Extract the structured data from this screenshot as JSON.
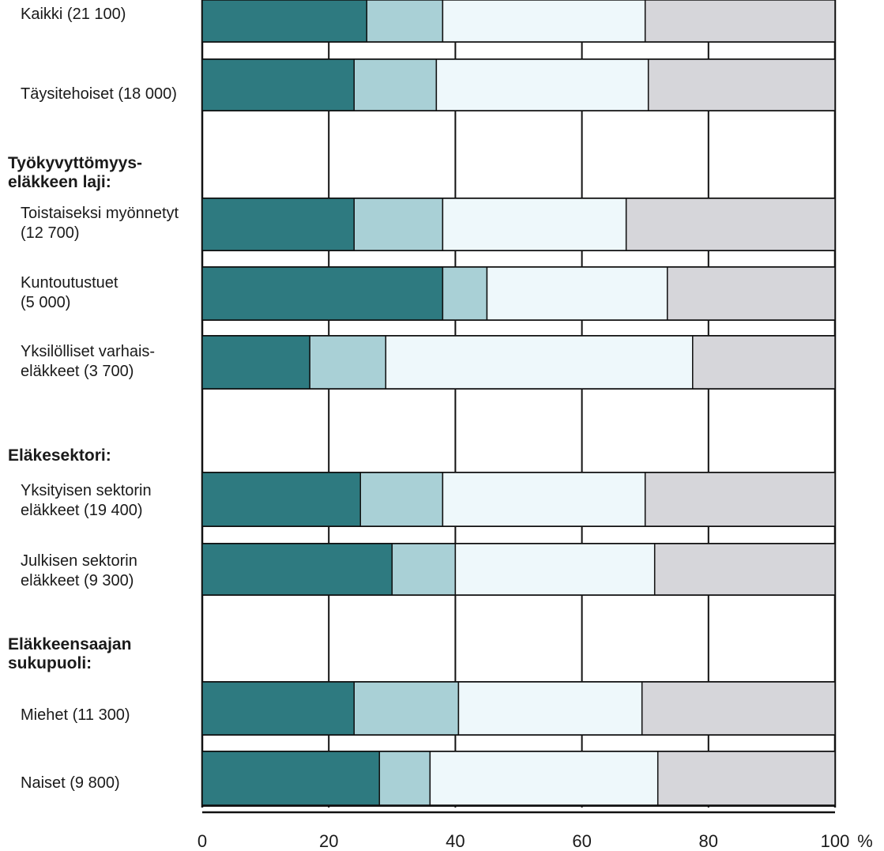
{
  "chart_data": {
    "type": "bar",
    "orientation": "horizontal",
    "stacked": true,
    "xlim": [
      0,
      100
    ],
    "xticks": [
      0,
      20,
      40,
      60,
      80,
      100
    ],
    "xlabel": "%",
    "grid": true,
    "rows": [
      {
        "kind": "category",
        "label_lines": [
          "Kaikki (21 100)"
        ],
        "values": [
          26,
          12,
          32,
          30
        ]
      },
      {
        "kind": "category",
        "label_lines": [
          "Täysitehoiset (18 000)"
        ],
        "values": [
          24,
          13,
          33.5,
          29.5
        ]
      },
      {
        "kind": "group",
        "label_lines": [
          "Työkyvyttömyys-",
          "eläkkeen laji:"
        ]
      },
      {
        "kind": "category",
        "label_lines": [
          "Toistaiseksi myönnetyt",
          "(12 700)"
        ],
        "values": [
          24,
          14,
          29,
          33
        ]
      },
      {
        "kind": "category",
        "label_lines": [
          "Kuntoutustuet",
          "(5 000)"
        ],
        "values": [
          38,
          7,
          28.5,
          26.5
        ]
      },
      {
        "kind": "category",
        "label_lines": [
          "Yksilölliset varhais-",
          "eläkkeet (3 700)"
        ],
        "values": [
          17,
          12,
          48.5,
          22.5
        ]
      },
      {
        "kind": "group",
        "label_lines": [
          "Eläkesektori:"
        ]
      },
      {
        "kind": "category",
        "label_lines": [
          "Yksityisen sektorin",
          "eläkkeet (19 400)"
        ],
        "values": [
          25,
          13,
          32,
          30
        ]
      },
      {
        "kind": "category",
        "label_lines": [
          "Julkisen sektorin",
          "eläkkeet (9 300)"
        ],
        "values": [
          30,
          10,
          31.5,
          28.5
        ]
      },
      {
        "kind": "group",
        "label_lines": [
          "Eläkkeensaajan",
          "sukupuoli:"
        ]
      },
      {
        "kind": "category",
        "label_lines": [
          "Miehet (11 300)"
        ],
        "values": [
          24,
          16.5,
          29,
          30.5
        ]
      },
      {
        "kind": "category",
        "label_lines": [
          "Naiset (9 800)"
        ],
        "values": [
          28,
          8,
          36,
          28
        ]
      }
    ],
    "segment_colors": [
      "#2e7a80",
      "#a9d0d6",
      "#eef8fb",
      "#d6d6da"
    ]
  }
}
